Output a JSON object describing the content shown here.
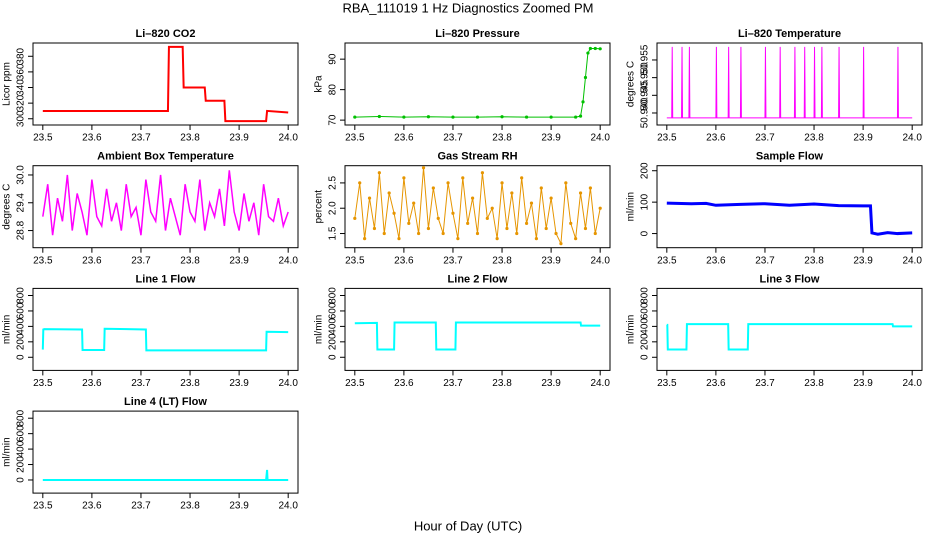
{
  "title": "RBA_111019  1 Hz Diagnostics Zoomed PM",
  "xlabel": "Hour of Day (UTC)",
  "chart_data": [
    {
      "type": "line",
      "title": "Li–820 CO2",
      "ylabel": "Licor ppm",
      "color": "#ff0000",
      "line_width": 2,
      "style": "line",
      "x": [
        23.5,
        23.755,
        23.757,
        23.785,
        23.787,
        23.83,
        23.832,
        23.87,
        23.872,
        23.955,
        23.957,
        24.0
      ],
      "values": [
        310,
        310,
        392,
        392,
        340,
        340,
        323,
        323,
        297,
        297,
        310,
        308
      ],
      "xlim": [
        23.48,
        24.02
      ],
      "xticks": [
        23.5,
        23.6,
        23.7,
        23.8,
        23.9,
        {
          "value": 24,
          "label": "24.0"
        }
      ],
      "ylim": [
        292,
        397
      ],
      "yticks": [
        300,
        320,
        340,
        360,
        380
      ]
    },
    {
      "type": "line",
      "title": "Li–820 Pressure",
      "ylabel": "kPa",
      "color": "#00c000",
      "line_width": 1,
      "style": "both",
      "x": [
        23.5,
        23.55,
        23.6,
        23.65,
        23.7,
        23.75,
        23.8,
        23.85,
        23.9,
        23.95,
        23.96,
        23.965,
        23.97,
        23.975,
        23.98,
        23.99,
        24.0
      ],
      "values": [
        71,
        71.2,
        71,
        71.1,
        71,
        71,
        71.1,
        71,
        71,
        71,
        71.3,
        76,
        84,
        92,
        93.5,
        93.5,
        93.4
      ],
      "xlim": [
        23.48,
        24.02
      ],
      "xticks": [
        23.5,
        23.6,
        23.7,
        23.8,
        23.9,
        {
          "value": 24,
          "label": "24.0"
        }
      ],
      "ylim": [
        68.4,
        95.3
      ],
      "yticks": [
        70,
        80,
        90
      ]
    },
    {
      "type": "line",
      "title": "Li–820 Temperature",
      "ylabel": "degrees C",
      "color": "#ff00ff",
      "line_width": 1,
      "style": "line",
      "x": [
        23.5,
        23.51,
        23.511,
        23.512,
        23.53,
        23.531,
        23.532,
        23.545,
        23.546,
        23.547,
        23.6,
        23.601,
        23.602,
        23.625,
        23.626,
        23.627,
        23.65,
        23.651,
        23.652,
        23.7,
        23.701,
        23.702,
        23.73,
        23.731,
        23.732,
        23.76,
        23.761,
        23.762,
        23.78,
        23.781,
        23.782,
        23.8,
        23.801,
        23.802,
        23.815,
        23.816,
        23.817,
        23.85,
        23.851,
        23.852,
        23.9,
        23.901,
        23.902,
        23.97,
        23.971,
        23.972,
        24.0
      ],
      "values": [
        50.9386,
        50.9386,
        50.9587,
        50.9386,
        50.9386,
        50.9587,
        50.9386,
        50.9386,
        50.9587,
        50.9386,
        50.9386,
        50.9587,
        50.9386,
        50.9386,
        50.9587,
        50.9386,
        50.9386,
        50.9587,
        50.9386,
        50.9386,
        50.9587,
        50.9386,
        50.9386,
        50.9587,
        50.9386,
        50.9386,
        50.9587,
        50.9386,
        50.9386,
        50.9587,
        50.9386,
        50.9386,
        50.9587,
        50.9386,
        50.9386,
        50.9587,
        50.9386,
        50.9386,
        50.9587,
        50.9386,
        50.9386,
        50.9587,
        50.9386,
        50.9386,
        50.9587,
        50.9386,
        50.9386
      ],
      "xlim": [
        23.48,
        24.02
      ],
      "xticks": [
        23.5,
        23.6,
        23.7,
        23.8,
        23.9,
        {
          "value": 24,
          "label": "24.0"
        }
      ],
      "ylim": [
        50.9366,
        50.9598
      ],
      "yticks": [
        {
          "value": 50.94,
          "label": "50.940"
        },
        50.945,
        {
          "value": 50.95,
          "label": "50.950"
        },
        50.955
      ]
    },
    {
      "type": "line",
      "title": "Ambient Box Temperature",
      "ylabel": "degrees C",
      "color": "#ff00ff",
      "line_width": 1.5,
      "style": "line",
      "x": [
        23.5,
        23.51,
        23.52,
        23.53,
        23.54,
        23.55,
        23.56,
        23.57,
        23.58,
        23.59,
        23.6,
        23.61,
        23.62,
        23.63,
        23.64,
        23.65,
        23.66,
        23.67,
        23.68,
        23.69,
        23.7,
        23.71,
        23.72,
        23.73,
        23.74,
        23.75,
        23.76,
        23.77,
        23.78,
        23.79,
        23.8,
        23.81,
        23.82,
        23.83,
        23.84,
        23.85,
        23.86,
        23.87,
        23.88,
        23.89,
        23.9,
        23.91,
        23.92,
        23.93,
        23.94,
        23.95,
        23.96,
        23.97,
        23.98,
        23.99,
        24.0
      ],
      "values": [
        29.1,
        29.8,
        28.7,
        29.5,
        29.0,
        30.0,
        28.8,
        29.6,
        29.2,
        28.7,
        29.9,
        29.1,
        28.9,
        29.7,
        29.0,
        29.4,
        28.8,
        29.8,
        29.1,
        29.3,
        28.7,
        29.9,
        29.2,
        29.0,
        30.0,
        28.8,
        29.5,
        29.1,
        28.7,
        29.8,
        29.2,
        29.0,
        29.9,
        28.8,
        29.4,
        29.1,
        29.7,
        28.9,
        30.1,
        29.2,
        28.8,
        29.6,
        29.0,
        29.4,
        28.7,
        29.8,
        29.1,
        29.0,
        29.5,
        28.9,
        29.2
      ],
      "xlim": [
        23.48,
        24.02
      ],
      "xticks": [
        23.5,
        23.6,
        23.7,
        23.8,
        23.9,
        {
          "value": 24,
          "label": "24.0"
        }
      ],
      "ylim": [
        28.43,
        30.2
      ],
      "yticks": [
        28.8,
        29.4,
        {
          "value": 30,
          "label": "30.0"
        }
      ]
    },
    {
      "type": "line",
      "title": "Gas Stream RH",
      "ylabel": "percent",
      "color": "#e69500",
      "line_width": 1,
      "style": "both",
      "x": [
        23.5,
        23.51,
        23.52,
        23.53,
        23.54,
        23.55,
        23.56,
        23.57,
        23.58,
        23.59,
        23.6,
        23.61,
        23.62,
        23.63,
        23.64,
        23.65,
        23.66,
        23.67,
        23.68,
        23.69,
        23.7,
        23.71,
        23.72,
        23.73,
        23.74,
        23.75,
        23.76,
        23.77,
        23.78,
        23.79,
        23.8,
        23.81,
        23.82,
        23.83,
        23.84,
        23.85,
        23.86,
        23.87,
        23.88,
        23.89,
        23.9,
        23.91,
        23.92,
        23.93,
        23.94,
        23.95,
        23.96,
        23.97,
        23.98,
        23.99,
        24.0
      ],
      "values": [
        1.8,
        2.5,
        1.4,
        2.2,
        1.6,
        2.7,
        1.5,
        2.3,
        1.9,
        1.4,
        2.6,
        1.7,
        2.1,
        1.5,
        2.8,
        1.6,
        2.4,
        1.8,
        1.5,
        2.5,
        1.9,
        1.4,
        2.6,
        1.7,
        2.2,
        1.5,
        2.7,
        1.8,
        2.0,
        1.4,
        2.5,
        1.6,
        2.3,
        1.5,
        2.6,
        1.7,
        2.1,
        1.4,
        2.4,
        1.6,
        2.2,
        1.5,
        1.3,
        2.5,
        1.7,
        1.4,
        2.3,
        1.6,
        2.4,
        1.5,
        2.0
      ],
      "xlim": [
        23.48,
        24.02
      ],
      "xticks": [
        23.5,
        23.6,
        23.7,
        23.8,
        23.9,
        {
          "value": 24,
          "label": "24.0"
        }
      ],
      "ylim": [
        1.22,
        2.84
      ],
      "yticks": [
        1.5,
        {
          "value": 2,
          "label": "2.0"
        },
        2.5
      ]
    },
    {
      "type": "line",
      "title": "Sample Flow",
      "ylabel": "ml/min",
      "color": "#0000ff",
      "line_width": 3,
      "style": "line",
      "x": [
        23.5,
        23.55,
        23.58,
        23.6,
        23.65,
        23.7,
        23.75,
        23.8,
        23.85,
        23.9,
        23.915,
        23.918,
        23.93,
        23.95,
        23.97,
        24.0
      ],
      "values": [
        97,
        95,
        96,
        90,
        93,
        95,
        90,
        94,
        89,
        88,
        88,
        2,
        -2,
        3,
        0,
        2
      ],
      "xlim": [
        23.48,
        24.02
      ],
      "xticks": [
        23.5,
        23.6,
        23.7,
        23.8,
        23.9,
        {
          "value": 24,
          "label": "24.0"
        }
      ],
      "ylim": [
        -45,
        216
      ],
      "yticks": [
        0,
        100,
        200
      ]
    },
    {
      "type": "line",
      "title": "Line 1 Flow",
      "ylabel": "ml/min",
      "color": "#00ffff",
      "line_width": 2,
      "style": "line",
      "x": [
        23.5,
        23.501,
        23.503,
        23.58,
        23.581,
        23.625,
        23.626,
        23.71,
        23.711,
        23.955,
        23.956,
        24.0
      ],
      "values": [
        100,
        360,
        365,
        360,
        95,
        95,
        370,
        360,
        90,
        90,
        330,
        325
      ],
      "xlim": [
        23.48,
        24.02
      ],
      "xticks": [
        23.5,
        23.6,
        23.7,
        23.8,
        23.9,
        {
          "value": 24,
          "label": "24.0"
        }
      ],
      "ylim": [
        -170,
        892
      ],
      "yticks": [
        0,
        200,
        400,
        600,
        800
      ]
    },
    {
      "type": "line",
      "title": "Line 2 Flow",
      "ylabel": "ml/min",
      "color": "#00ffff",
      "line_width": 2,
      "style": "line",
      "x": [
        23.5,
        23.545,
        23.546,
        23.58,
        23.581,
        23.665,
        23.666,
        23.705,
        23.706,
        23.96,
        23.961,
        24.0
      ],
      "values": [
        440,
        445,
        100,
        100,
        450,
        450,
        100,
        100,
        450,
        450,
        410,
        410
      ],
      "xlim": [
        23.48,
        24.02
      ],
      "xticks": [
        23.5,
        23.6,
        23.7,
        23.8,
        23.9,
        {
          "value": 24,
          "label": "24.0"
        }
      ],
      "ylim": [
        -170,
        892
      ],
      "yticks": [
        0,
        200,
        400,
        600,
        800
      ]
    },
    {
      "type": "line",
      "title": "Line 3 Flow",
      "ylabel": "ml/min",
      "color": "#00ffff",
      "line_width": 2,
      "style": "line",
      "x": [
        23.5,
        23.501,
        23.502,
        23.54,
        23.541,
        23.625,
        23.626,
        23.665,
        23.666,
        23.96,
        23.961,
        24.0
      ],
      "values": [
        420,
        420,
        100,
        100,
        430,
        430,
        100,
        100,
        430,
        430,
        400,
        400
      ],
      "xlim": [
        23.48,
        24.02
      ],
      "xticks": [
        23.5,
        23.6,
        23.7,
        23.8,
        23.9,
        {
          "value": 24,
          "label": "24.0"
        }
      ],
      "ylim": [
        -170,
        892
      ],
      "yticks": [
        0,
        200,
        400,
        600,
        800
      ]
    },
    {
      "type": "line",
      "title": "Line 4 (LT) Flow",
      "ylabel": "ml/min",
      "color": "#00ffff",
      "line_width": 2,
      "style": "line",
      "x": [
        23.5,
        23.955,
        23.957,
        23.958,
        23.96,
        24.0
      ],
      "values": [
        0,
        0,
        130,
        0,
        0,
        0
      ],
      "xlim": [
        23.48,
        24.02
      ],
      "xticks": [
        23.5,
        23.6,
        23.7,
        23.8,
        23.9,
        {
          "value": 24,
          "label": "24.0"
        }
      ],
      "ylim": [
        -170,
        892
      ],
      "yticks": [
        0,
        200,
        400,
        600,
        800
      ]
    }
  ]
}
